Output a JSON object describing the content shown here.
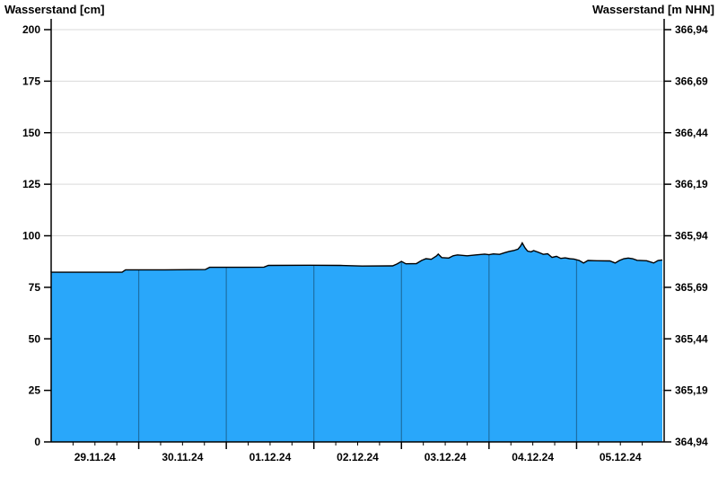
{
  "chart": {
    "left_axis_title": "Wasserstand [cm]",
    "right_axis_title": "Wasserstand [m NHN]"
  },
  "chart_data": {
    "type": "area",
    "title": "",
    "left_axis": {
      "label": "Wasserstand [cm]",
      "ticks": [
        0,
        25,
        50,
        75,
        100,
        125,
        150,
        175,
        200
      ],
      "ylim": [
        0,
        200
      ]
    },
    "right_axis": {
      "label": "Wasserstand [m NHN]",
      "tick_labels": [
        "364,94",
        "365,19",
        "365,44",
        "365,69",
        "365,94",
        "366,19",
        "366,44",
        "366,69",
        "366,94"
      ]
    },
    "x_axis": {
      "day_labels": [
        "29.11.24",
        "30.11.24",
        "01.12.24",
        "02.12.24",
        "03.12.24",
        "04.12.24",
        "05.12.24"
      ],
      "xlim_days": [
        0,
        7
      ],
      "minor_tick_hours": 6
    },
    "grid": {
      "horizontal": true,
      "vertical_day_lines_in_area": true
    },
    "legend": "none",
    "series": [
      {
        "name": "Wasserstand",
        "unit": "cm",
        "points": [
          [
            0.0,
            82.3
          ],
          [
            0.44,
            82.3
          ],
          [
            0.81,
            82.3
          ],
          [
            0.85,
            83.5
          ],
          [
            1.3,
            83.5
          ],
          [
            1.76,
            83.6
          ],
          [
            1.81,
            84.7
          ],
          [
            2.2,
            84.7
          ],
          [
            2.43,
            84.8
          ],
          [
            2.48,
            85.6
          ],
          [
            2.95,
            85.7
          ],
          [
            3.3,
            85.6
          ],
          [
            3.55,
            85.3
          ],
          [
            3.9,
            85.4
          ],
          [
            3.95,
            86.3
          ],
          [
            4.0,
            87.6
          ],
          [
            4.05,
            86.4
          ],
          [
            4.17,
            86.5
          ],
          [
            4.23,
            88.0
          ],
          [
            4.28,
            88.9
          ],
          [
            4.34,
            88.6
          ],
          [
            4.4,
            90.2
          ],
          [
            4.42,
            91.1
          ],
          [
            4.46,
            89.4
          ],
          [
            4.54,
            89.2
          ],
          [
            4.59,
            90.3
          ],
          [
            4.64,
            90.7
          ],
          [
            4.75,
            90.3
          ],
          [
            4.85,
            90.7
          ],
          [
            4.95,
            91.1
          ],
          [
            5.0,
            90.8
          ],
          [
            5.05,
            91.2
          ],
          [
            5.12,
            91.0
          ],
          [
            5.18,
            91.8
          ],
          [
            5.23,
            92.4
          ],
          [
            5.28,
            92.8
          ],
          [
            5.33,
            93.5
          ],
          [
            5.36,
            95.0
          ],
          [
            5.38,
            96.5
          ],
          [
            5.41,
            94.2
          ],
          [
            5.44,
            92.6
          ],
          [
            5.48,
            92.2
          ],
          [
            5.51,
            92.8
          ],
          [
            5.57,
            91.9
          ],
          [
            5.62,
            91.0
          ],
          [
            5.67,
            91.3
          ],
          [
            5.72,
            89.5
          ],
          [
            5.77,
            90.0
          ],
          [
            5.82,
            89.0
          ],
          [
            5.87,
            89.3
          ],
          [
            5.92,
            88.9
          ],
          [
            5.97,
            88.7
          ],
          [
            6.03,
            88.0
          ],
          [
            6.08,
            86.8
          ],
          [
            6.13,
            88.0
          ],
          [
            6.23,
            87.9
          ],
          [
            6.38,
            87.8
          ],
          [
            6.44,
            86.8
          ],
          [
            6.49,
            88.0
          ],
          [
            6.54,
            88.9
          ],
          [
            6.59,
            89.2
          ],
          [
            6.64,
            88.9
          ],
          [
            6.69,
            88.1
          ],
          [
            6.8,
            87.9
          ],
          [
            6.88,
            86.8
          ],
          [
            6.93,
            88.0
          ],
          [
            6.98,
            88.3
          ]
        ]
      }
    ],
    "colors": {
      "area_fill": "#29a7fa",
      "data_line": "#000000",
      "day_separator": "#1d6fa5",
      "h_gridline": "#d9d9d9",
      "axis": "#000000"
    }
  }
}
